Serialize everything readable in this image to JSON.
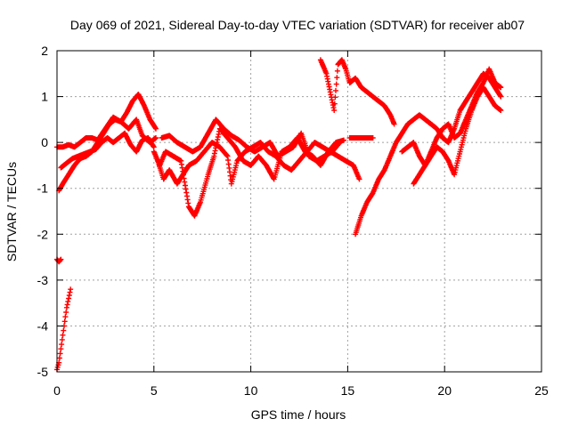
{
  "chart_data": {
    "type": "scatter",
    "title": "Day 069 of 2021, Sidereal Day-to-day VTEC variation (SDTVAR) for receiver ab07",
    "xlabel": "GPS time / hours",
    "ylabel": "SDTVAR / TECUs",
    "xlim": [
      0,
      25
    ],
    "ylim": [
      -5,
      2
    ],
    "xticks": [
      0,
      5,
      10,
      15,
      20,
      25
    ],
    "yticks": [
      -5,
      -4,
      -3,
      -2,
      -1,
      0,
      1,
      2
    ],
    "grid": true,
    "marker": "+",
    "color": "#ff0000",
    "series": [
      {
        "name": "SDTVAR",
        "segments": [
          [
            [
              0.0,
              -4.95
            ],
            [
              0.1,
              -4.8
            ],
            [
              0.2,
              -4.5
            ],
            [
              0.3,
              -4.2
            ],
            [
              0.4,
              -3.9
            ],
            [
              0.5,
              -3.6
            ],
            [
              0.6,
              -3.4
            ],
            [
              0.7,
              -3.2
            ]
          ],
          [
            [
              0.0,
              -2.55
            ],
            [
              0.1,
              -2.6
            ],
            [
              0.2,
              -2.55
            ]
          ],
          [
            [
              0.0,
              -0.1
            ],
            [
              0.3,
              -0.1
            ],
            [
              0.6,
              -0.05
            ],
            [
              0.9,
              -0.1
            ],
            [
              1.2,
              0.0
            ],
            [
              1.5,
              0.1
            ],
            [
              1.8,
              0.1
            ],
            [
              2.1,
              0.05
            ],
            [
              2.5,
              0.3
            ],
            [
              2.9,
              0.55
            ],
            [
              3.3,
              0.45
            ],
            [
              3.7,
              0.3
            ],
            [
              4.1,
              0.5
            ],
            [
              4.4,
              0.15
            ],
            [
              4.8,
              0.0
            ],
            [
              5.1,
              0.1
            ]
          ],
          [
            [
              0.1,
              -1.05
            ],
            [
              0.3,
              -0.9
            ],
            [
              0.6,
              -0.7
            ],
            [
              0.9,
              -0.5
            ],
            [
              1.2,
              -0.35
            ],
            [
              1.5,
              -0.3
            ],
            [
              1.8,
              -0.2
            ],
            [
              2.1,
              0.0
            ],
            [
              2.4,
              0.2
            ],
            [
              2.7,
              0.4
            ],
            [
              3.0,
              0.5
            ],
            [
              3.3,
              0.45
            ],
            [
              3.6,
              0.65
            ],
            [
              3.9,
              0.9
            ],
            [
              4.2,
              1.05
            ],
            [
              4.5,
              0.8
            ],
            [
              4.8,
              0.5
            ],
            [
              5.1,
              0.3
            ]
          ],
          [
            [
              0.2,
              -0.55
            ],
            [
              0.5,
              -0.45
            ],
            [
              0.8,
              -0.35
            ],
            [
              1.1,
              -0.3
            ],
            [
              1.4,
              -0.25
            ],
            [
              1.7,
              -0.2
            ],
            [
              2.0,
              -0.15
            ],
            [
              2.3,
              0.0
            ],
            [
              2.6,
              0.1
            ],
            [
              2.9,
              0.0
            ],
            [
              3.2,
              0.1
            ],
            [
              3.5,
              0.2
            ],
            [
              3.8,
              -0.05
            ],
            [
              4.1,
              -0.2
            ],
            [
              4.4,
              0.05
            ],
            [
              4.7,
              0.1
            ],
            [
              5.0,
              -0.1
            ]
          ],
          [
            [
              5.0,
              -0.2
            ],
            [
              5.3,
              -0.5
            ],
            [
              5.6,
              -0.2
            ],
            [
              6.0,
              -0.3
            ],
            [
              6.4,
              -0.4
            ],
            [
              6.8,
              -1.4
            ],
            [
              7.1,
              -1.6
            ],
            [
              7.4,
              -1.3
            ],
            [
              7.8,
              -0.7
            ],
            [
              8.1,
              -0.3
            ],
            [
              8.4,
              0.3
            ],
            [
              8.8,
              0.1
            ],
            [
              9.2,
              -0.1
            ],
            [
              9.6,
              -0.4
            ],
            [
              10.0,
              -0.5
            ],
            [
              10.4,
              -0.3
            ],
            [
              10.8,
              -0.5
            ],
            [
              11.2,
              -0.8
            ],
            [
              11.6,
              -0.2
            ],
            [
              12.0,
              -0.1
            ],
            [
              12.4,
              0.1
            ],
            [
              12.8,
              -0.2
            ],
            [
              13.2,
              -0.3
            ],
            [
              13.6,
              -0.5
            ],
            [
              14.0,
              -0.2
            ],
            [
              14.4,
              0.0
            ],
            [
              14.8,
              0.05
            ]
          ],
          [
            [
              5.2,
              -0.4
            ],
            [
              5.5,
              -0.8
            ],
            [
              5.8,
              -0.6
            ],
            [
              6.2,
              -0.9
            ],
            [
              6.5,
              -0.7
            ],
            [
              6.8,
              -0.5
            ],
            [
              7.2,
              -0.4
            ],
            [
              7.6,
              -0.2
            ],
            [
              8.0,
              0.0
            ],
            [
              8.4,
              -0.1
            ],
            [
              8.8,
              -0.3
            ],
            [
              9.0,
              -0.9
            ],
            [
              9.3,
              -0.4
            ],
            [
              9.7,
              -0.2
            ],
            [
              10.1,
              -0.1
            ],
            [
              10.5,
              0.0
            ],
            [
              10.9,
              -0.2
            ],
            [
              11.3,
              -0.3
            ],
            [
              11.7,
              -0.5
            ],
            [
              12.1,
              -0.6
            ],
            [
              12.5,
              -0.4
            ],
            [
              12.9,
              -0.2
            ],
            [
              13.3,
              0.0
            ],
            [
              13.7,
              -0.1
            ],
            [
              14.1,
              -0.2
            ],
            [
              14.5,
              -0.3
            ],
            [
              14.9,
              -0.4
            ],
            [
              15.3,
              -0.5
            ],
            [
              15.6,
              -0.8
            ]
          ],
          [
            [
              5.4,
              0.1
            ],
            [
              5.8,
              0.15
            ],
            [
              6.2,
              0.0
            ],
            [
              6.6,
              -0.1
            ],
            [
              7.0,
              -0.2
            ],
            [
              7.4,
              -0.1
            ],
            [
              7.8,
              0.2
            ],
            [
              8.2,
              0.5
            ],
            [
              8.6,
              0.3
            ],
            [
              9.0,
              0.15
            ],
            [
              9.4,
              0.05
            ],
            [
              9.8,
              -0.1
            ],
            [
              10.2,
              -0.2
            ],
            [
              10.6,
              -0.1
            ],
            [
              11.0,
              0.0
            ],
            [
              11.4,
              -0.3
            ],
            [
              11.8,
              -0.2
            ],
            [
              12.2,
              -0.1
            ],
            [
              12.6,
              0.2
            ],
            [
              13.0,
              -0.3
            ],
            [
              13.4,
              -0.4
            ],
            [
              13.8,
              -0.3
            ],
            [
              14.2,
              -0.2
            ],
            [
              14.6,
              0.0
            ]
          ],
          [
            [
              13.6,
              1.8
            ],
            [
              13.9,
              1.5
            ],
            [
              14.1,
              1.1
            ],
            [
              14.3,
              0.7
            ],
            [
              14.5,
              1.7
            ],
            [
              14.7,
              1.8
            ],
            [
              14.9,
              1.6
            ],
            [
              15.1,
              1.3
            ],
            [
              15.4,
              1.4
            ],
            [
              15.7,
              1.2
            ],
            [
              16.0,
              1.1
            ],
            [
              16.3,
              1.0
            ],
            [
              16.6,
              0.9
            ],
            [
              16.9,
              0.8
            ],
            [
              17.2,
              0.6
            ],
            [
              17.4,
              0.4
            ]
          ],
          [
            [
              15.1,
              0.1
            ],
            [
              15.5,
              0.1
            ],
            [
              15.9,
              0.1
            ],
            [
              16.3,
              0.1
            ]
          ],
          [
            [
              15.4,
              -2.0
            ],
            [
              15.7,
              -1.6
            ],
            [
              16.0,
              -1.3
            ],
            [
              16.3,
              -1.1
            ],
            [
              16.6,
              -0.8
            ],
            [
              16.9,
              -0.6
            ],
            [
              17.2,
              -0.3
            ],
            [
              17.5,
              0.0
            ],
            [
              17.8,
              0.2
            ],
            [
              18.1,
              0.4
            ],
            [
              18.4,
              0.5
            ],
            [
              18.7,
              0.6
            ],
            [
              19.0,
              0.5
            ],
            [
              19.3,
              0.4
            ],
            [
              19.6,
              0.3
            ],
            [
              19.9,
              0.1
            ],
            [
              20.2,
              0.0
            ],
            [
              20.5,
              0.3
            ],
            [
              20.8,
              0.7
            ],
            [
              21.1,
              0.9
            ],
            [
              21.4,
              1.1
            ],
            [
              21.7,
              1.3
            ],
            [
              22.0,
              1.5
            ],
            [
              22.3,
              1.4
            ],
            [
              22.6,
              1.2
            ],
            [
              22.9,
              1.0
            ]
          ],
          [
            [
              17.8,
              -0.2
            ],
            [
              18.1,
              -0.1
            ],
            [
              18.4,
              0.0
            ],
            [
              18.7,
              -0.3
            ],
            [
              19.0,
              -0.5
            ],
            [
              19.3,
              -0.3
            ],
            [
              19.6,
              -0.1
            ],
            [
              19.9,
              -0.2
            ],
            [
              20.2,
              -0.4
            ],
            [
              20.5,
              -0.7
            ],
            [
              20.8,
              -0.2
            ],
            [
              21.1,
              0.3
            ],
            [
              21.4,
              0.7
            ],
            [
              21.7,
              1.0
            ],
            [
              22.0,
              1.2
            ],
            [
              22.3,
              1.0
            ],
            [
              22.6,
              0.8
            ],
            [
              22.9,
              0.7
            ]
          ],
          [
            [
              18.4,
              -0.9
            ],
            [
              18.7,
              -0.7
            ],
            [
              19.0,
              -0.5
            ],
            [
              19.3,
              -0.2
            ],
            [
              19.6,
              0.1
            ],
            [
              19.9,
              0.3
            ],
            [
              20.2,
              0.4
            ],
            [
              20.5,
              0.1
            ],
            [
              20.8,
              0.2
            ],
            [
              21.1,
              0.5
            ],
            [
              21.4,
              0.8
            ],
            [
              21.7,
              1.1
            ],
            [
              22.0,
              1.3
            ],
            [
              22.3,
              1.6
            ],
            [
              22.6,
              1.3
            ],
            [
              22.9,
              1.2
            ]
          ]
        ]
      }
    ]
  }
}
